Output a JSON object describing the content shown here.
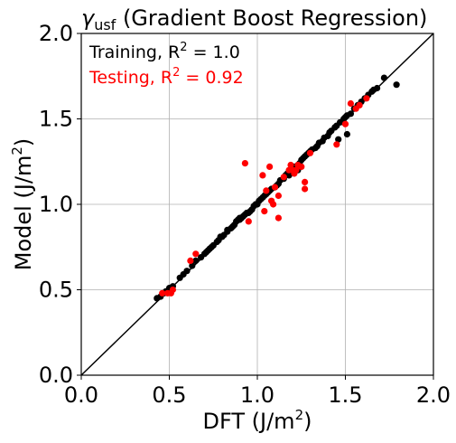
{
  "chart_data": {
    "type": "scatter",
    "title": {
      "symbol": "γ",
      "subscript": "usf",
      "text": " (Gradient Boost Regression)"
    },
    "xlabel": {
      "text": "DFT (J/m",
      "sup": "2",
      "tail": ")"
    },
    "ylabel": {
      "text": "Model (J/m",
      "sup": "2",
      "tail": ")"
    },
    "xlim": [
      0.0,
      2.0
    ],
    "ylim": [
      0.0,
      2.0
    ],
    "xticks": [
      "0.0",
      "0.5",
      "1.0",
      "1.5",
      "2.0"
    ],
    "yticks": [
      "0.0",
      "0.5",
      "1.0",
      "1.5",
      "2.0"
    ],
    "grid": true,
    "legend_placement": "top-left",
    "reference_line": "y = x",
    "series": [
      {
        "name": "Training",
        "r2_label": "R",
        "r2_sup": "2",
        "r2_value": " = 1.0",
        "color": "#000000",
        "points": [
          [
            0.43,
            0.45
          ],
          [
            0.45,
            0.46
          ],
          [
            0.47,
            0.48
          ],
          [
            0.48,
            0.49
          ],
          [
            0.5,
            0.51
          ],
          [
            0.52,
            0.52
          ],
          [
            0.56,
            0.57
          ],
          [
            0.58,
            0.59
          ],
          [
            0.6,
            0.61
          ],
          [
            0.63,
            0.64
          ],
          [
            0.65,
            0.67
          ],
          [
            0.68,
            0.69
          ],
          [
            0.7,
            0.71
          ],
          [
            0.71,
            0.72
          ],
          [
            0.72,
            0.73
          ],
          [
            0.73,
            0.74
          ],
          [
            0.74,
            0.75
          ],
          [
            0.75,
            0.76
          ],
          [
            0.77,
            0.78
          ],
          [
            0.78,
            0.79
          ],
          [
            0.79,
            0.81
          ],
          [
            0.8,
            0.81
          ],
          [
            0.81,
            0.82
          ],
          [
            0.83,
            0.84
          ],
          [
            0.85,
            0.86
          ],
          [
            0.86,
            0.87
          ],
          [
            0.87,
            0.88
          ],
          [
            0.88,
            0.9
          ],
          [
            0.89,
            0.91
          ],
          [
            0.9,
            0.91
          ],
          [
            0.91,
            0.92
          ],
          [
            0.92,
            0.93
          ],
          [
            0.93,
            0.94
          ],
          [
            0.94,
            0.95
          ],
          [
            0.95,
            0.95
          ],
          [
            0.96,
            0.96
          ],
          [
            0.97,
            0.97
          ],
          [
            0.98,
            0.99
          ],
          [
            0.99,
            1.0
          ],
          [
            1.0,
            1.0
          ],
          [
            1.01,
            1.02
          ],
          [
            1.02,
            1.03
          ],
          [
            1.03,
            1.04
          ],
          [
            1.04,
            1.05
          ],
          [
            1.05,
            1.06
          ],
          [
            1.06,
            1.07
          ],
          [
            1.07,
            1.08
          ],
          [
            1.08,
            1.09
          ],
          [
            1.1,
            1.1
          ],
          [
            1.11,
            1.11
          ],
          [
            1.12,
            1.12
          ],
          [
            1.13,
            1.14
          ],
          [
            1.15,
            1.15
          ],
          [
            1.16,
            1.17
          ],
          [
            1.17,
            1.18
          ],
          [
            1.18,
            1.19
          ],
          [
            1.19,
            1.2
          ],
          [
            1.2,
            1.21
          ],
          [
            1.21,
            1.22
          ],
          [
            1.23,
            1.23
          ],
          [
            1.24,
            1.24
          ],
          [
            1.25,
            1.26
          ],
          [
            1.26,
            1.27
          ],
          [
            1.27,
            1.28
          ],
          [
            1.28,
            1.29
          ],
          [
            1.29,
            1.3
          ],
          [
            1.3,
            1.31
          ],
          [
            1.31,
            1.32
          ],
          [
            1.33,
            1.33
          ],
          [
            1.34,
            1.34
          ],
          [
            1.35,
            1.36
          ],
          [
            1.37,
            1.37
          ],
          [
            1.38,
            1.39
          ],
          [
            1.4,
            1.4
          ],
          [
            1.41,
            1.42
          ],
          [
            1.42,
            1.43
          ],
          [
            1.44,
            1.45
          ],
          [
            1.45,
            1.46
          ],
          [
            1.47,
            1.48
          ],
          [
            1.49,
            1.5
          ],
          [
            1.5,
            1.51
          ],
          [
            1.51,
            1.52
          ],
          [
            1.53,
            1.53
          ],
          [
            1.55,
            1.56
          ],
          [
            1.57,
            1.58
          ],
          [
            1.59,
            1.6
          ],
          [
            1.61,
            1.62
          ],
          [
            1.63,
            1.64
          ],
          [
            1.65,
            1.66
          ],
          [
            1.66,
            1.67
          ],
          [
            1.68,
            1.68
          ],
          [
            1.72,
            1.74
          ],
          [
            1.79,
            1.7
          ],
          [
            1.51,
            1.41
          ],
          [
            1.49,
            1.48
          ],
          [
            1.46,
            1.38
          ],
          [
            1.23,
            1.2
          ],
          [
            1.18,
            1.17
          ],
          [
            0.83,
            0.85
          ],
          [
            0.9,
            0.92
          ]
        ]
      },
      {
        "name": "Testing",
        "r2_label": "R",
        "r2_sup": "2",
        "r2_value": " = 0.92",
        "color": "#ff0000",
        "points": [
          [
            0.46,
            0.48
          ],
          [
            0.49,
            0.48
          ],
          [
            0.51,
            0.48
          ],
          [
            0.52,
            0.5
          ],
          [
            0.62,
            0.67
          ],
          [
            0.65,
            0.71
          ],
          [
            0.93,
            1.24
          ],
          [
            0.95,
            0.9
          ],
          [
            1.03,
            1.17
          ],
          [
            1.04,
            0.96
          ],
          [
            1.05,
            1.08
          ],
          [
            1.07,
            1.22
          ],
          [
            1.08,
            1.02
          ],
          [
            1.09,
            1.0
          ],
          [
            1.1,
            1.1
          ],
          [
            1.12,
            0.92
          ],
          [
            1.12,
            1.05
          ],
          [
            1.15,
            1.16
          ],
          [
            1.18,
            1.2
          ],
          [
            1.19,
            1.23
          ],
          [
            1.2,
            1.2
          ],
          [
            1.21,
            1.18
          ],
          [
            1.22,
            1.2
          ],
          [
            1.23,
            1.23
          ],
          [
            1.25,
            1.22
          ],
          [
            1.27,
            1.09
          ],
          [
            1.27,
            1.13
          ],
          [
            1.3,
            1.3
          ],
          [
            1.45,
            1.35
          ],
          [
            1.5,
            1.47
          ],
          [
            1.53,
            1.59
          ],
          [
            1.56,
            1.56
          ],
          [
            1.58,
            1.58
          ],
          [
            1.62,
            1.62
          ]
        ]
      }
    ]
  }
}
